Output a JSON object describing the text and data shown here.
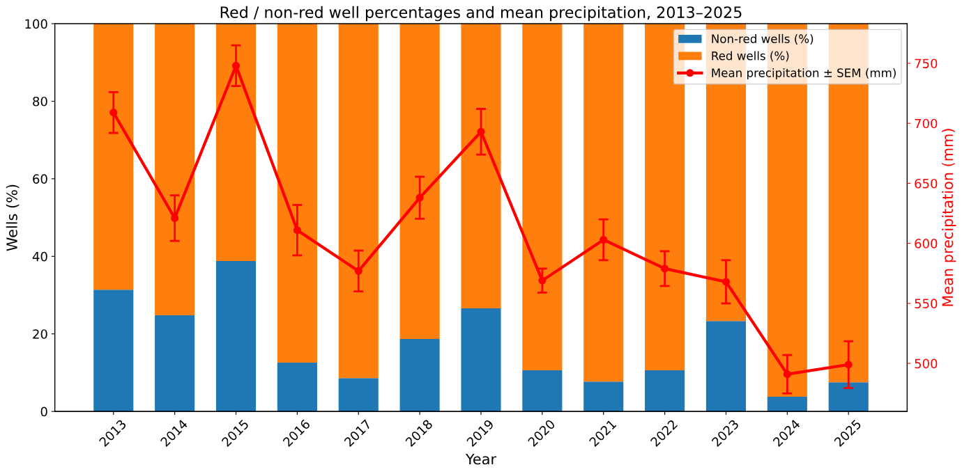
{
  "chart_data": {
    "type": "bar",
    "title": "Red / non-red well percentages and mean precipitation, 2013–2025",
    "xlabel": "Year",
    "ylabel": "Wells (%)",
    "y2label": "Mean precipitation (mm)",
    "categories": [
      "2013",
      "2014",
      "2015",
      "2016",
      "2017",
      "2018",
      "2019",
      "2020",
      "2021",
      "2022",
      "2023",
      "2024",
      "2025"
    ],
    "stacked": true,
    "series": [
      {
        "name": "Non-red wells (%)",
        "color": "#1f77b4",
        "values": [
          31.4,
          24.8,
          38.8,
          12.6,
          8.6,
          18.7,
          26.6,
          10.6,
          7.7,
          10.6,
          23.3,
          3.8,
          7.5
        ]
      },
      {
        "name": "Red wells (%)",
        "color": "#ff7f0e",
        "values": [
          68.6,
          75.2,
          61.2,
          87.4,
          91.4,
          81.3,
          73.4,
          89.4,
          92.3,
          89.4,
          76.7,
          96.2,
          92.5
        ]
      },
      {
        "name": "Mean precipitation ± SEM (mm)",
        "type": "line",
        "axis": "y2",
        "color": "#ff0000",
        "marker": "circle",
        "values": [
          709,
          621,
          748,
          611,
          577,
          638,
          693,
          569,
          603,
          579,
          568,
          491,
          499
        ],
        "errors": [
          17,
          19,
          17,
          21,
          17,
          17.5,
          19,
          10,
          17,
          14.5,
          18,
          16,
          19.5
        ]
      }
    ],
    "ylim": [
      0,
      100
    ],
    "yticks": [
      0,
      20,
      40,
      60,
      80,
      100
    ],
    "y2lim": [
      460,
      783
    ],
    "y2ticks": [
      500,
      550,
      600,
      650,
      700,
      750
    ],
    "legend": "top right",
    "grid": false
  }
}
